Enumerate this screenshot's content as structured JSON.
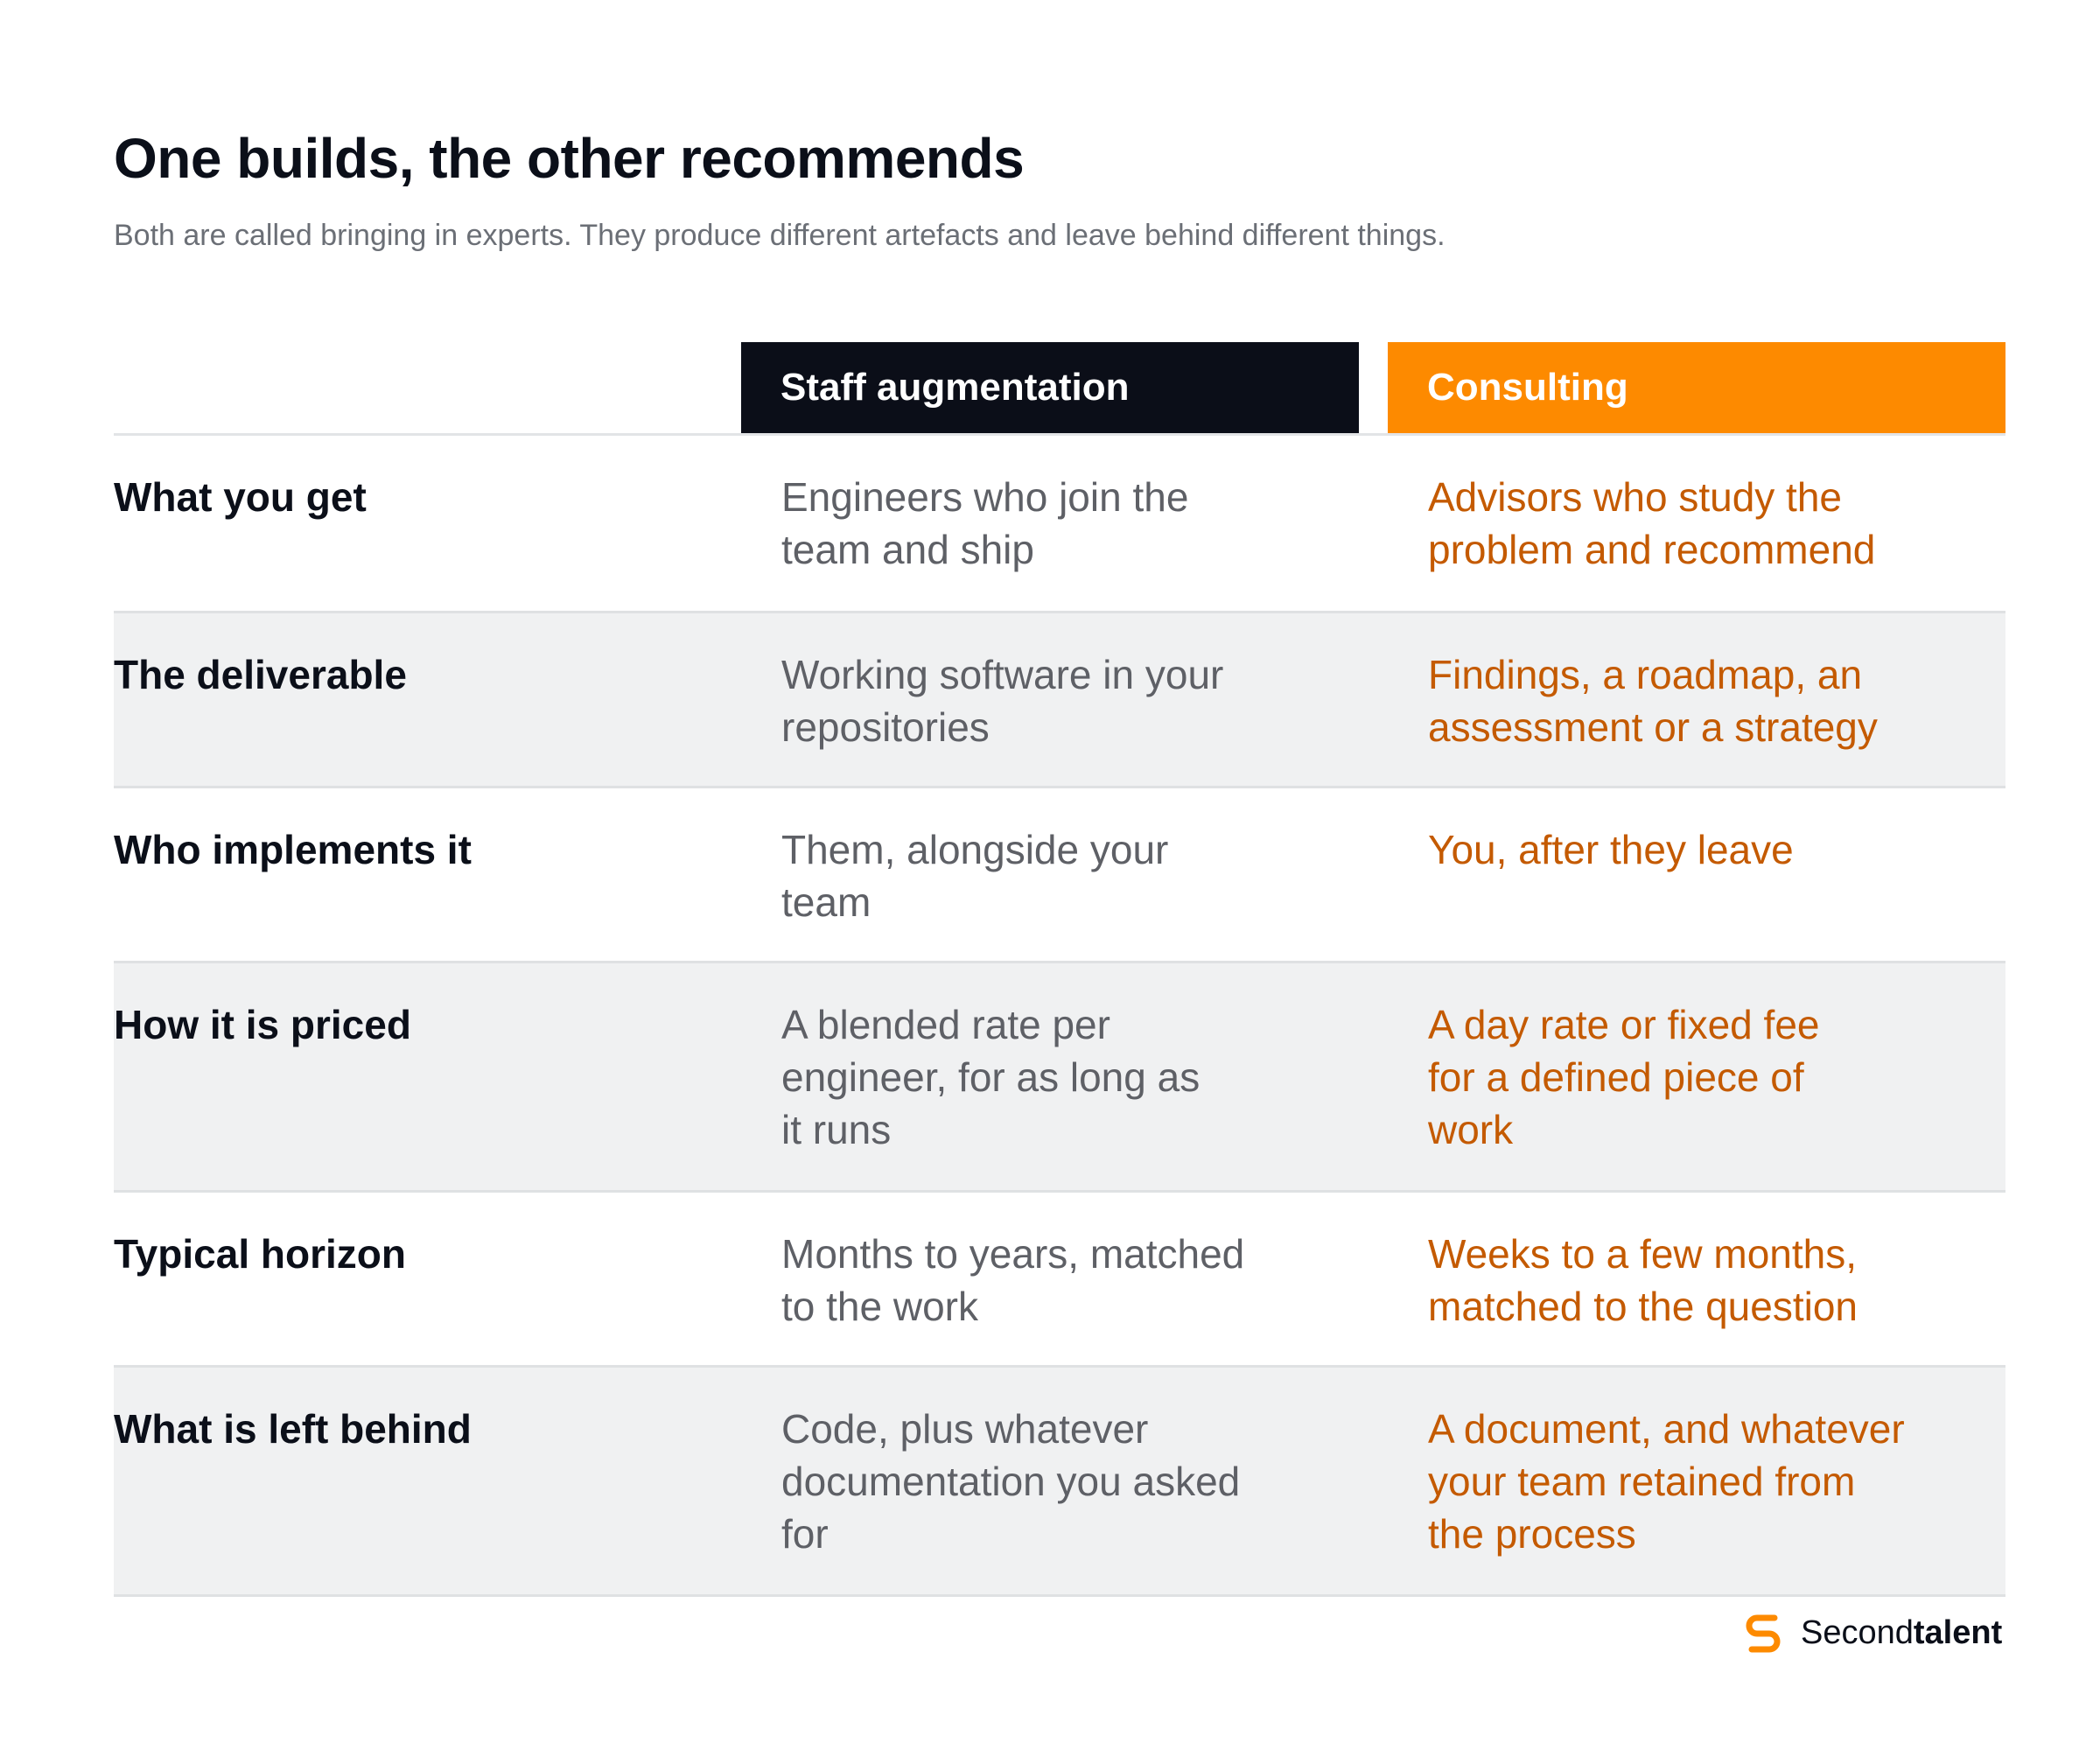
{
  "header": {
    "title": "One builds, the other recommends",
    "subtitle": "Both are called bringing in experts. They produce different artefacts and leave behind different things."
  },
  "columns": {
    "staff": "Staff augmentation",
    "consulting": "Consulting"
  },
  "rows": [
    {
      "label": "What you get",
      "staff": [
        "Engineers who join the",
        "team and ship"
      ],
      "consulting": [
        "Advisors who study the",
        "problem and recommend"
      ]
    },
    {
      "label": "The deliverable",
      "staff": [
        "Working software in your",
        "repositories"
      ],
      "consulting": [
        "Findings, a roadmap, an",
        "assessment or a strategy"
      ]
    },
    {
      "label": "Who implements it",
      "staff": [
        "Them, alongside your",
        "team"
      ],
      "consulting": [
        "You, after they leave"
      ]
    },
    {
      "label": "How it is priced",
      "staff": [
        "A blended rate per",
        "engineer, for as long as",
        "it runs"
      ],
      "consulting": [
        "A day rate or fixed fee",
        "for a defined piece of",
        "work"
      ]
    },
    {
      "label": "Typical horizon",
      "staff": [
        "Months to years, matched",
        "to the work"
      ],
      "consulting": [
        "Weeks to a few months,",
        "matched to the question"
      ]
    },
    {
      "label": "What is left behind",
      "staff": [
        "Code, plus whatever",
        "documentation you asked",
        "for"
      ],
      "consulting": [
        "A document, and whatever",
        "your team retained from",
        "the process"
      ]
    }
  ],
  "brand": {
    "name_regular": "Second",
    "name_bold": "talent",
    "icon": "secondtalent-logo-icon",
    "accent": "#fd8a00"
  },
  "colors": {
    "dark_header": "#0b0e18",
    "orange_header": "#fd8a00",
    "consulting_text": "#c45a00",
    "staff_text": "#5e6066",
    "row_shade": "#f0f1f2"
  }
}
